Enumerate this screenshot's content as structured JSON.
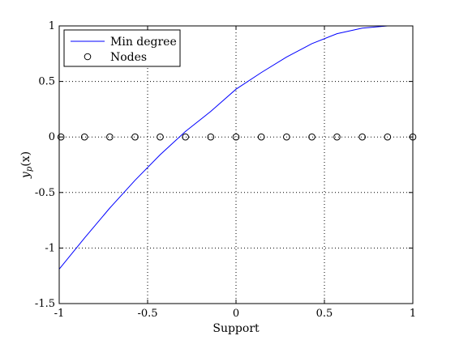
{
  "chart_data": {
    "type": "line",
    "xlabel": "Support",
    "ylabel": "y_p(x)",
    "ylabel_main": "y",
    "ylabel_sub": "p",
    "ylabel_args": "(x)",
    "xlim": [
      -1,
      1
    ],
    "ylim": [
      -1.5,
      1
    ],
    "xticks": [
      -1,
      -0.5,
      0,
      0.5,
      1
    ],
    "xtick_labels": [
      "-1",
      "-0.5",
      "0",
      "0.5",
      "1"
    ],
    "yticks": [
      -1.5,
      -1,
      -0.5,
      0,
      0.5,
      1
    ],
    "ytick_labels": [
      "-1.5",
      "-1",
      "-0.5",
      "0",
      "0.5",
      "1"
    ],
    "grid": true,
    "legend_position": "top-left",
    "series": [
      {
        "name": "Min degree",
        "kind": "line",
        "color": "#0000ff",
        "x": [
          -1,
          -0.857,
          -0.714,
          -0.571,
          -0.429,
          -0.286,
          -0.143,
          0,
          0.143,
          0.286,
          0.429,
          0.571,
          0.714,
          0.857,
          0.9,
          1
        ],
        "y": [
          -1.19,
          -0.91,
          -0.64,
          -0.39,
          -0.16,
          0.05,
          0.23,
          0.43,
          0.58,
          0.72,
          0.84,
          0.93,
          0.98,
          1.0,
          1.0,
          1.0
        ]
      },
      {
        "name": "Nodes",
        "kind": "markers",
        "marker": "circle",
        "color": "#000000",
        "x": [
          -0.99,
          -0.857,
          -0.714,
          -0.571,
          -0.429,
          -0.286,
          -0.143,
          0,
          0.143,
          0.286,
          0.429,
          0.571,
          0.714,
          0.857,
          1
        ],
        "y": [
          0,
          0,
          0,
          0,
          0,
          0,
          0,
          0,
          0,
          0,
          0,
          0,
          0,
          0,
          0
        ]
      }
    ],
    "extra_labels": {
      "zero_left": "0"
    }
  }
}
